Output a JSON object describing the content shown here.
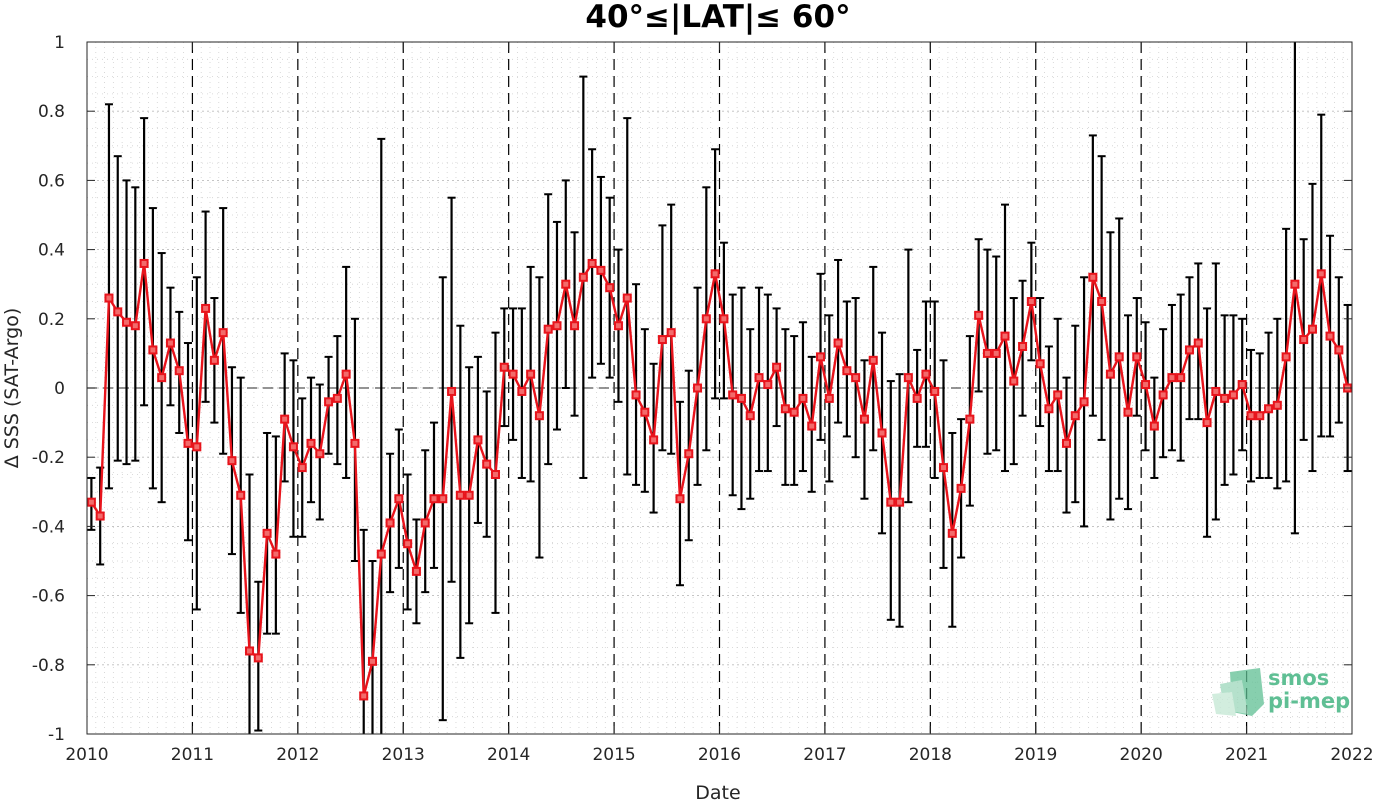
{
  "chart_data": {
    "type": "line",
    "title": "40°≤|LAT|≤ 60°",
    "xlabel": "Date",
    "ylabel": "Δ SSS (SAT-Argo)",
    "xlim": [
      2010,
      2022
    ],
    "ylim": [
      -1,
      1
    ],
    "x_ticks": [
      2010,
      2011,
      2012,
      2013,
      2014,
      2015,
      2016,
      2017,
      2018,
      2019,
      2020,
      2021,
      2022
    ],
    "y_ticks": [
      -1,
      -0.8,
      -0.6,
      -0.4,
      -0.2,
      0,
      0.2,
      0.4,
      0.6,
      0.8,
      1
    ],
    "y_tick_labels": [
      "-1",
      "-0.8",
      "-0.6",
      "-0.4",
      "-0.2",
      "0",
      "0.2",
      "0.4",
      "0.6",
      "0.8",
      "1"
    ],
    "x_tick_labels": [
      "2010",
      "2011",
      "2012",
      "2013",
      "2014",
      "2015",
      "2016",
      "2017",
      "2018",
      "2019",
      "2020",
      "2021",
      "2022"
    ],
    "grid": true,
    "year_separators": "dashed vertical lines at each year",
    "zero_line": "dashed horizontal line at 0",
    "series": [
      {
        "color": "#e8141c",
        "marker": "square",
        "errorbar_color": "#000000",
        "values": [
          -0.33,
          -0.37,
          0.26,
          0.22,
          0.19,
          0.18,
          0.36,
          0.11,
          0.03,
          0.13,
          0.05,
          -0.16,
          -0.17,
          0.23,
          0.08,
          0.16,
          -0.21,
          -0.31,
          -0.76,
          -0.78,
          -0.42,
          -0.48,
          -0.09,
          -0.17,
          -0.23,
          -0.16,
          -0.19,
          -0.04,
          -0.03,
          0.04,
          -0.16,
          -0.89,
          -0.79,
          -0.48,
          -0.39,
          -0.32,
          -0.45,
          -0.53,
          -0.39,
          -0.32,
          -0.32,
          -0.01,
          -0.31,
          -0.31,
          -0.15,
          -0.22,
          -0.25,
          0.06,
          0.04,
          -0.01,
          0.04,
          -0.08,
          0.17,
          0.18,
          0.3,
          0.18,
          0.32,
          0.36,
          0.34,
          0.29,
          0.18,
          0.26,
          -0.02,
          -0.07,
          -0.15,
          0.14,
          0.16,
          -0.32,
          -0.19,
          0.0,
          0.2,
          0.33,
          0.2,
          -0.02,
          -0.03,
          -0.08,
          0.03,
          0.01,
          0.06,
          -0.06,
          -0.07,
          -0.03,
          -0.11,
          0.09,
          -0.03,
          0.13,
          0.05,
          0.03,
          -0.09,
          0.08,
          -0.13,
          -0.33,
          -0.33,
          0.03,
          -0.03,
          0.04,
          -0.01,
          -0.23,
          -0.42,
          -0.29,
          -0.09,
          0.21,
          0.1,
          0.1,
          0.15,
          0.02,
          0.12,
          0.25,
          0.07,
          -0.06,
          -0.02,
          -0.16,
          -0.08,
          -0.04,
          0.32,
          0.25,
          0.04,
          0.09,
          -0.07,
          0.09,
          0.01,
          -0.11,
          -0.02,
          0.03,
          0.03,
          0.11,
          0.13,
          -0.1,
          -0.01,
          -0.03,
          -0.02,
          0.01,
          -0.08,
          -0.08,
          -0.06,
          -0.05,
          0.09,
          0.3,
          0.14,
          0.17,
          0.33,
          0.15,
          0.11,
          0.0
        ],
        "upper": [
          -0.26,
          -0.23,
          0.82,
          0.67,
          0.6,
          0.58,
          0.78,
          0.52,
          0.39,
          0.29,
          0.22,
          0.13,
          0.32,
          0.51,
          0.26,
          0.52,
          0.06,
          0.03,
          -0.25,
          -0.56,
          -0.13,
          -0.14,
          0.1,
          0.08,
          -0.03,
          0.03,
          0.01,
          0.09,
          0.15,
          0.35,
          0.2,
          -0.41,
          -0.5,
          0.72,
          -0.19,
          -0.12,
          -0.25,
          -0.38,
          -0.18,
          -0.1,
          0.32,
          0.55,
          0.18,
          0.06,
          0.09,
          -0.01,
          0.16,
          0.23,
          0.23,
          0.23,
          0.35,
          0.32,
          0.56,
          0.48,
          0.6,
          0.45,
          0.9,
          0.69,
          0.61,
          0.55,
          0.4,
          0.78,
          0.3,
          0.17,
          0.07,
          0.47,
          0.53,
          -0.04,
          0.05,
          0.29,
          0.58,
          0.69,
          0.42,
          0.27,
          0.29,
          0.17,
          0.29,
          0.27,
          0.23,
          0.17,
          0.15,
          0.19,
          0.09,
          0.33,
          0.21,
          0.37,
          0.25,
          0.26,
          0.08,
          0.35,
          0.16,
          0.02,
          0.04,
          0.4,
          0.11,
          0.25,
          0.25,
          0.08,
          -0.13,
          -0.09,
          0.15,
          0.43,
          0.4,
          0.38,
          0.53,
          0.26,
          0.31,
          0.42,
          0.26,
          0.12,
          0.2,
          0.03,
          0.18,
          0.32,
          0.73,
          0.67,
          0.45,
          0.49,
          0.21,
          0.26,
          0.19,
          0.03,
          0.17,
          0.24,
          0.27,
          0.32,
          0.36,
          0.23,
          0.36,
          0.21,
          0.21,
          0.2,
          0.11,
          0.1,
          0.16,
          0.2,
          0.46,
          1.0,
          0.43,
          0.59,
          0.79,
          0.44,
          0.32,
          0.24
        ],
        "lower": [
          -0.41,
          -0.51,
          -0.29,
          -0.21,
          -0.22,
          -0.21,
          -0.05,
          -0.29,
          -0.33,
          -0.05,
          -0.13,
          -0.44,
          -0.64,
          -0.04,
          -0.1,
          -0.19,
          -0.48,
          -0.65,
          -1.0,
          -0.99,
          -0.71,
          -0.71,
          -0.27,
          -0.43,
          -0.43,
          -0.33,
          -0.38,
          -0.19,
          -0.22,
          -0.26,
          -0.5,
          -1.0,
          -1.0,
          -1.0,
          -0.59,
          -0.52,
          -0.64,
          -0.68,
          -0.59,
          -0.52,
          -0.96,
          -0.56,
          -0.78,
          -0.68,
          -0.39,
          -0.43,
          -0.65,
          -0.11,
          -0.15,
          -0.26,
          -0.27,
          -0.49,
          -0.22,
          -0.12,
          0.0,
          -0.08,
          -0.26,
          0.03,
          0.07,
          0.03,
          -0.04,
          -0.25,
          -0.28,
          -0.3,
          -0.36,
          -0.18,
          -0.19,
          -0.57,
          -0.44,
          -0.28,
          -0.18,
          -0.03,
          -0.03,
          -0.31,
          -0.35,
          -0.32,
          -0.24,
          -0.24,
          -0.11,
          -0.28,
          -0.28,
          -0.24,
          -0.3,
          -0.15,
          -0.27,
          -0.1,
          -0.14,
          -0.2,
          -0.32,
          -0.18,
          -0.42,
          -0.67,
          -0.69,
          -0.33,
          -0.17,
          -0.17,
          -0.26,
          -0.52,
          -0.69,
          -0.49,
          -0.34,
          -0.01,
          -0.19,
          -0.18,
          -0.24,
          -0.22,
          -0.08,
          0.08,
          -0.11,
          -0.24,
          -0.24,
          -0.36,
          -0.33,
          -0.4,
          -0.08,
          -0.15,
          -0.38,
          -0.32,
          -0.35,
          -0.08,
          -0.18,
          -0.26,
          -0.2,
          -0.18,
          -0.21,
          -0.09,
          -0.09,
          -0.43,
          -0.38,
          -0.28,
          -0.25,
          -0.18,
          -0.27,
          -0.26,
          -0.26,
          -0.29,
          -0.27,
          -0.42,
          -0.15,
          -0.24,
          -0.14,
          -0.14,
          -0.1,
          -0.24
        ]
      }
    ]
  },
  "logo": {
    "line1": "smos",
    "line2": "pi-mep",
    "color": "#5fbf94"
  }
}
